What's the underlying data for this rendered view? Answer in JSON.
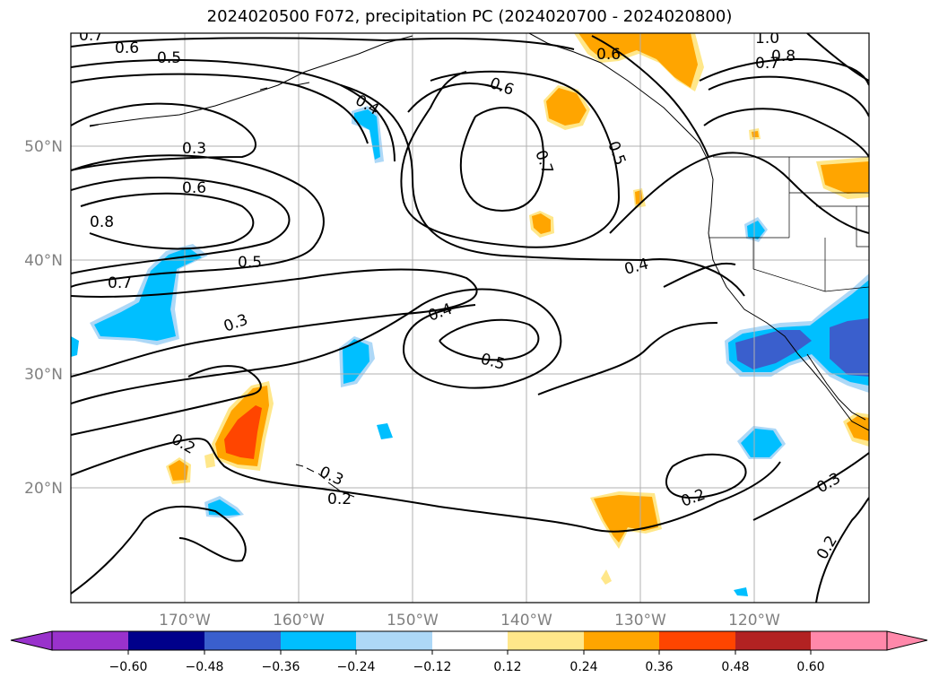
{
  "title": "2024020500 F072, precipitation PC (2024020700 - 2024020800)",
  "longitude_labels": [
    "170°W",
    "160°W",
    "150°W",
    "140°W",
    "130°W",
    "120°W"
  ],
  "latitude_labels": [
    "50°N",
    "40°N",
    "30°N",
    "20°N"
  ],
  "contour_labels": [
    "0.7",
    "0.6",
    "0.5",
    "0.4",
    "0.3",
    "0.6",
    "0.8",
    "0.7",
    "0.5",
    "0.3",
    "0.2",
    "0.3",
    "0.2",
    "0.6",
    "0.7",
    "0.5",
    "0.4",
    "0.5",
    "0.4",
    "0.6",
    "0.8",
    "0.7",
    "1.0",
    "0.2",
    "0.3",
    "0.2"
  ],
  "colorbar": {
    "ticks": [
      "−0.60",
      "−0.48",
      "−0.36",
      "−0.24",
      "−0.12",
      "0.12",
      "0.24",
      "0.36",
      "0.48",
      "0.60"
    ],
    "colors": [
      "#9932cc",
      "#00008b",
      "#3a5fcd",
      "#00bfff",
      "#add8f7",
      "#ffffff",
      "#ffe78a",
      "#ffa500",
      "#ff4500",
      "#b22222",
      "#ff88aa"
    ]
  },
  "shading_colors": {
    "lightblue": "#add8f7",
    "blue": "#00bfff",
    "royal": "#3a5fcd",
    "yellow": "#ffe78a",
    "orange": "#ffa500",
    "red": "#ff4500"
  }
}
